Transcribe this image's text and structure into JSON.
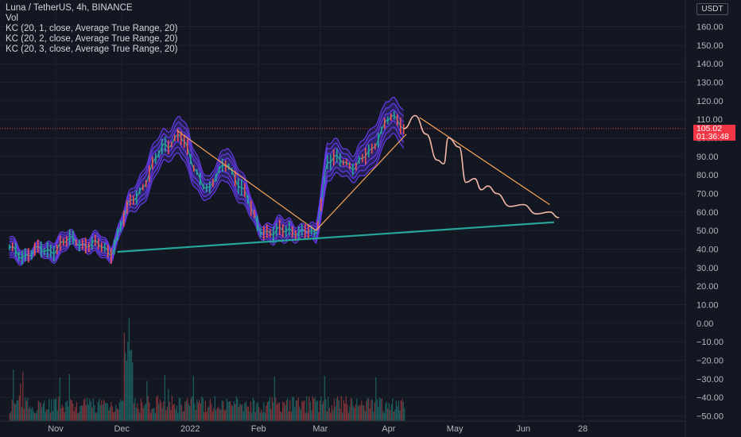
{
  "legend": {
    "symbol": "Luna / TetherUS, 4h, BINANCE",
    "vol": "Vol",
    "kc1": "KC (20, 1, close, Average True Range, 20)",
    "kc2": "KC (20, 2, close, Average True Range, 20)",
    "kc3": "KC (20, 3, close, Average True Range, 20)"
  },
  "currency": "USDT",
  "price_tag": {
    "price": "105.02",
    "countdown": "01:36:48"
  },
  "colors": {
    "background": "#131722",
    "grid": "#1e222d",
    "band": "#6a3cf0",
    "band_fill": "#3a2a8c",
    "up": "#26a69a",
    "down": "#ef5350",
    "trend_orange": "#f7a35c",
    "support_teal": "#26a69a",
    "sketch_pink": "#f5b8a8",
    "price_line": "#f23645"
  },
  "chart_data": {
    "type": "line",
    "title": "Luna / TetherUS, 4h, BINANCE",
    "ylim": [
      -55,
      170
    ],
    "y_ticks": [
      "160.00",
      "150.00",
      "140.00",
      "130.00",
      "120.00",
      "110.00",
      "100.00",
      "90.00",
      "80.00",
      "70.00",
      "60.00",
      "50.00",
      "40.00",
      "30.00",
      "20.00",
      "10.00",
      "0.00",
      "−10.00",
      "−20.00",
      "−30.00",
      "−40.00",
      "−50.00"
    ],
    "x_ticks": [
      "Nov",
      "Dec",
      "2022",
      "Feb",
      "Mar",
      "Apr",
      "May",
      "Jun",
      "28"
    ],
    "current_price": 105.02,
    "series": [
      {
        "name": "",
        "x": [
          "2021-10-11",
          "2021-10-20",
          "2021-11-01",
          "2021-11-10",
          "2021-11-18",
          "2021-11-26",
          "2021-12-04",
          "2021-12-12",
          "2021-12-20",
          "2021-12-27",
          "2022-01-02",
          "2022-01-10",
          "2022-01-18",
          "2022-01-24",
          "2022-02-01",
          "2022-02-08",
          "2022-02-15",
          "2022-02-21",
          "2022-02-27",
          "2022-03-04",
          "2022-03-10",
          "2022-03-17",
          "2022-03-24",
          "2022-03-31",
          "2022-04-05",
          "2022-04-08"
        ],
        "values": [
          40,
          37,
          41,
          45,
          42,
          39,
          62,
          78,
          95,
          103,
          85,
          72,
          88,
          73,
          53,
          47,
          52,
          48,
          48,
          88,
          87,
          86,
          91,
          112,
          108,
          103
        ]
      }
    ],
    "drawings": {
      "support_line": {
        "x": [
          "2021-11-29",
          "2022-06-15"
        ],
        "y": [
          38.5,
          54.5
        ]
      },
      "trend_lines": [
        {
          "x": [
            "2021-12-26",
            "2022-02-27"
          ],
          "y": [
            104,
            50
          ]
        },
        {
          "x": [
            "2022-02-27",
            "2022-04-09"
          ],
          "y": [
            50,
            102
          ]
        },
        {
          "x": [
            "2022-04-15",
            "2022-06-13"
          ],
          "y": [
            111,
            64
          ]
        }
      ],
      "projection_sketch": {
        "x": [
          "2022-04-08",
          "2022-04-13",
          "2022-04-18",
          "2022-04-23",
          "2022-04-26",
          "2022-04-28",
          "2022-05-03",
          "2022-05-06",
          "2022-05-10",
          "2022-05-13",
          "2022-05-16",
          "2022-05-20",
          "2022-05-26",
          "2022-06-01",
          "2022-06-07",
          "2022-06-13",
          "2022-06-17"
        ],
        "y": [
          105,
          112,
          102,
          88,
          86,
          100,
          95,
          76,
          78,
          72,
          74,
          70,
          63,
          64,
          59,
          60,
          57
        ]
      }
    },
    "volume": {
      "x_range": [
        "2021-10-11",
        "2022-04-08"
      ],
      "peak_date": "2021-12-04"
    }
  }
}
